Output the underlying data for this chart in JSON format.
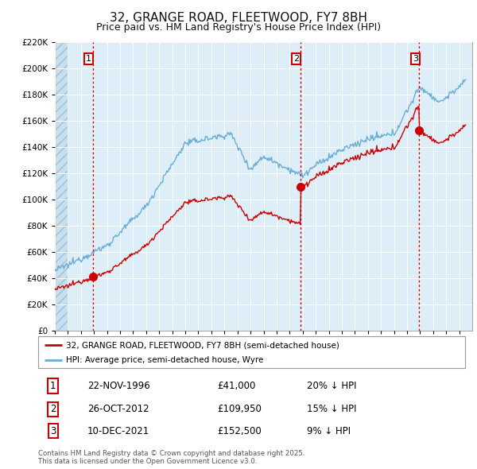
{
  "title": "32, GRANGE ROAD, FLEETWOOD, FY7 8BH",
  "subtitle": "Price paid vs. HM Land Registry's House Price Index (HPI)",
  "ylim": [
    0,
    220000
  ],
  "yticks": [
    0,
    20000,
    40000,
    60000,
    80000,
    100000,
    120000,
    140000,
    160000,
    180000,
    200000,
    220000
  ],
  "xlim_start": 1994.0,
  "xlim_end": 2026.0,
  "background_color": "#ffffff",
  "plot_bg_color": "#ddeef8",
  "grid_color": "#ffffff",
  "hpi_color": "#6aaed6",
  "price_color": "#cc0000",
  "title_fontsize": 11,
  "subtitle_fontsize": 9,
  "purchases": [
    {
      "date_num": 1996.9,
      "price": 41000,
      "label": "1"
    },
    {
      "date_num": 2012.82,
      "price": 109950,
      "label": "2"
    },
    {
      "date_num": 2021.94,
      "price": 152500,
      "label": "3"
    }
  ],
  "purchase_labels_info": [
    {
      "label": "1",
      "date": "22-NOV-1996",
      "price": "£41,000",
      "hpi_rel": "20% ↓ HPI"
    },
    {
      "label": "2",
      "date": "26-OCT-2012",
      "price": "£109,950",
      "hpi_rel": "15% ↓ HPI"
    },
    {
      "label": "3",
      "date": "10-DEC-2021",
      "price": "£152,500",
      "hpi_rel": "9% ↓ HPI"
    }
  ],
  "legend_line1": "32, GRANGE ROAD, FLEETWOOD, FY7 8BH (semi-detached house)",
  "legend_line2": "HPI: Average price, semi-detached house, Wyre",
  "footer": "Contains HM Land Registry data © Crown copyright and database right 2025.\nThis data is licensed under the Open Government Licence v3.0.",
  "vline_color": "#cc0000",
  "label_box_color": "#ffffff",
  "label_box_edge": "#cc0000",
  "hatch_end": 1995.0
}
